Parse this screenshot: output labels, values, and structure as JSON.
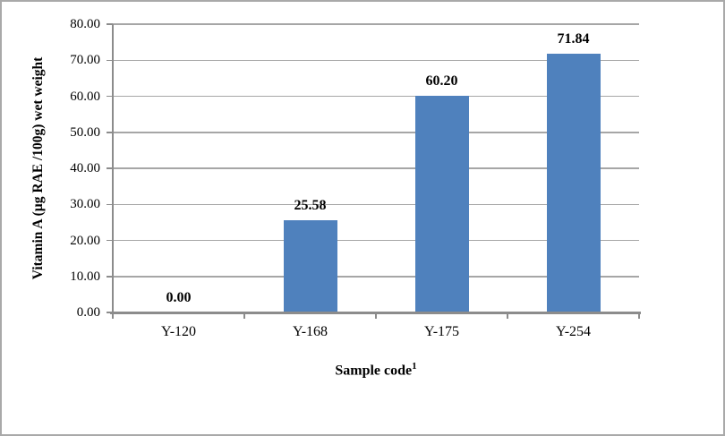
{
  "figure": {
    "background": "#ffffff",
    "border_color": "#a9a9a9"
  },
  "chart_data": {
    "type": "bar",
    "title": "",
    "categories": [
      "Y-120",
      "Y-168",
      "Y-175",
      "Y-254"
    ],
    "values": [
      0.0,
      25.58,
      60.2,
      71.84
    ],
    "value_labels": [
      "0.00",
      "25.58",
      "60.20",
      "71.84"
    ],
    "xlabel": "Sample code",
    "xlabel_superscript": "1",
    "ylabel": "Vitamin A (µg RAE /100g) wet weight",
    "ylim": [
      0,
      80
    ],
    "ytick_step": 10,
    "ytick_labels": [
      "0.00",
      "10.00",
      "20.00",
      "30.00",
      "40.00",
      "50.00",
      "60.00",
      "70.00",
      "80.00"
    ],
    "grid": true,
    "legend": false,
    "bar_color": "#4f81bd",
    "gridline_color": "#a6a6a6",
    "axis_color": "#8c8c8c",
    "label_color": "#000000"
  }
}
